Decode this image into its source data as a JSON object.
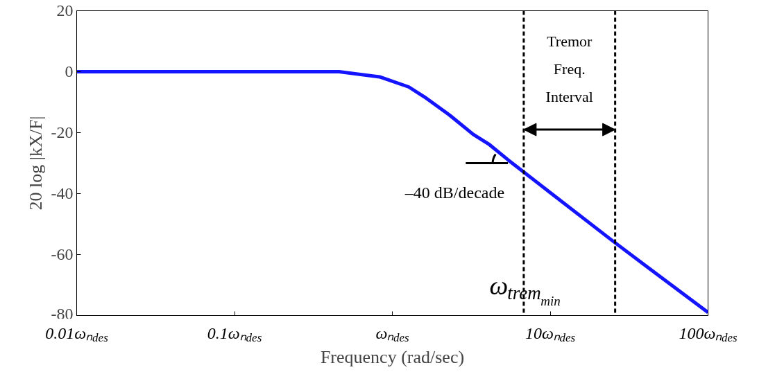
{
  "chart_data": {
    "type": "line",
    "xlabel": "Frequency (rad/sec)",
    "ylabel": "20 log |kX/F|",
    "log": "x",
    "grid": false,
    "x": [
      0.01,
      0.1,
      0.46,
      0.83,
      1.27,
      1.6,
      2.3,
      3.26,
      4.07,
      5.4,
      9.9,
      25,
      41,
      100
    ],
    "series": [
      {
        "color": "#1414ff",
        "values": [
          0,
          0,
          0,
          -1.7,
          -5,
          -8.3,
          -14.2,
          -20.6,
          -23.7,
          -28.9,
          -39.5,
          -55.6,
          -64,
          -79
        ]
      }
    ],
    "xlim": [
      0.01,
      100
    ],
    "ylim": [
      -80,
      20
    ],
    "xticks": [
      {
        "value": 0.01,
        "label": "0.01ωₙ$_{des}$"
      },
      {
        "value": 0.1,
        "label": "0.1ωₙ$_{des}$"
      },
      {
        "value": 1,
        "label": "ωₙ$_{des}$"
      },
      {
        "value": 10,
        "label": "10ωₙ$_{des}$"
      },
      {
        "value": 100,
        "label": "100ωₙ$_{des}$"
      }
    ],
    "yticks": [
      -80,
      -60,
      -40,
      -20,
      0,
      20
    ],
    "ref_lines": [
      {
        "axis": "x",
        "value": 6.8,
        "line_style": "dashed",
        "color": "#000000"
      },
      {
        "axis": "x",
        "value": 25.8,
        "line_style": "dashed",
        "color": "#000000"
      }
    ],
    "annotations": [
      "Tremor\nFreq.\nInterval",
      {
        "text": "–40 dB/decade",
        "x": 5.4,
        "y": -30
      },
      {
        "text": "ω$_{trem}$$_{min}$",
        "x": 6.8,
        "y": -70
      }
    ]
  }
}
